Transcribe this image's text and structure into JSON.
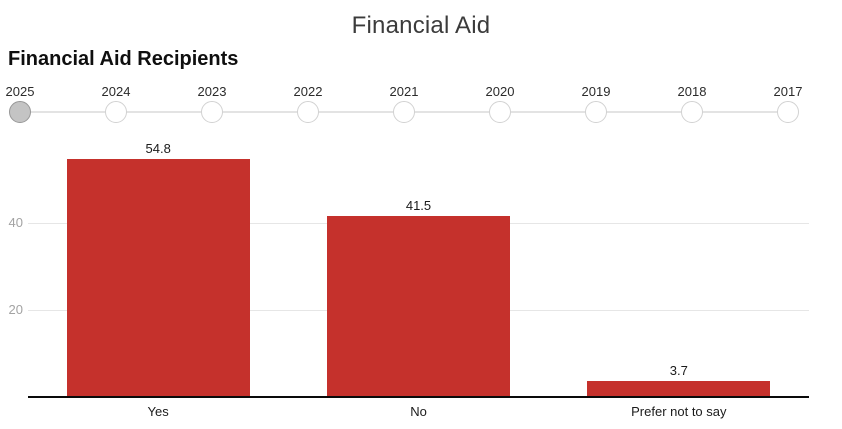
{
  "header": {
    "title": "Financial Aid",
    "subtitle": "Financial Aid Recipients"
  },
  "slider": {
    "years": [
      "2025",
      "2024",
      "2023",
      "2022",
      "2021",
      "2020",
      "2019",
      "2018",
      "2017"
    ],
    "selected_year": "2025",
    "selected_index": 0
  },
  "chart_data": {
    "type": "bar",
    "title": "Financial Aid Recipients",
    "categories": [
      "Yes",
      "No",
      "Prefer not to say"
    ],
    "values": [
      54.8,
      41.5,
      3.7
    ],
    "value_labels": [
      "54.8",
      "41.5",
      "3.7"
    ],
    "xlabel": "",
    "ylabel": "",
    "ylim": [
      0,
      60
    ],
    "yticks": [
      20,
      40
    ],
    "grid": true,
    "legend": "none"
  },
  "colors": {
    "bar": "#c5312c",
    "gridline": "#e6e6e6",
    "axis_line": "#0a0a0a",
    "tick_label": "#a3a3a3",
    "year_label": "#2b2b2b",
    "slider_track": "#e3e3e3",
    "slider_stop_fill": "#ffffff",
    "slider_stop_border": "#d2d2d2",
    "slider_selected_fill": "#c4c4c4",
    "slider_selected_border": "#979797"
  }
}
